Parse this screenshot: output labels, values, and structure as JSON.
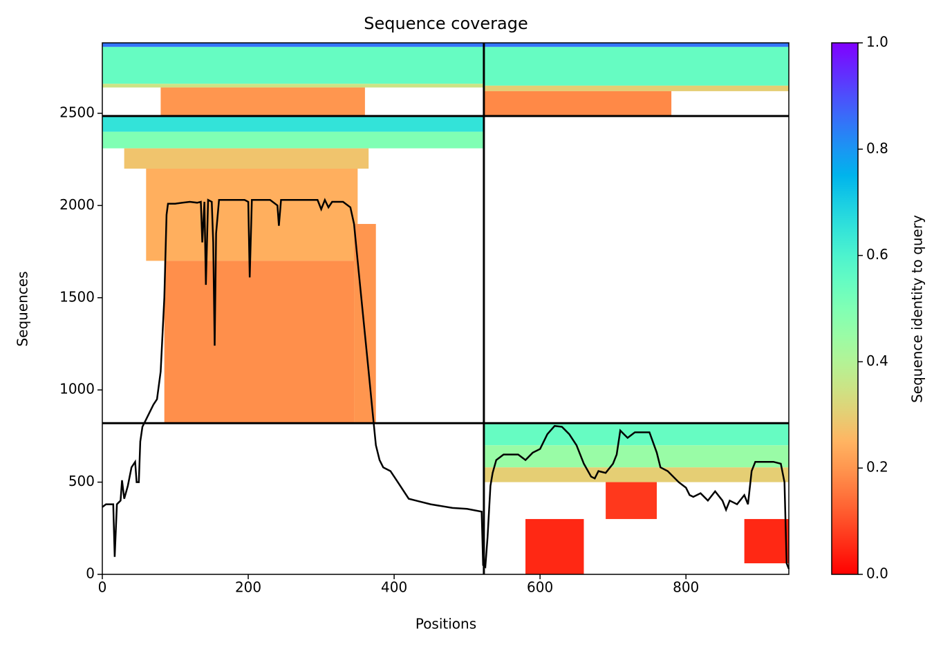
{
  "chart_data": {
    "type": "coverage",
    "title": "Sequence coverage",
    "xlabel": "Positions",
    "ylabel": "Sequences",
    "xlim": [
      0,
      941
    ],
    "ylim": [
      0,
      2882
    ],
    "xticks": [
      0,
      200,
      400,
      600,
      800
    ],
    "yticks": [
      0,
      500,
      1000,
      1500,
      2000,
      2500
    ],
    "colorbar": {
      "label": "Sequence identity to query",
      "lim": [
        0,
        1
      ],
      "ticks": [
        {
          "value": 0,
          "label": "0.0"
        },
        {
          "value": 0.2,
          "label": "0.2"
        },
        {
          "value": 0.4,
          "label": "0.4"
        },
        {
          "value": 0.6,
          "label": "0.6"
        },
        {
          "value": 0.8,
          "label": "0.8"
        },
        {
          "value": 1,
          "label": "1.0"
        }
      ]
    },
    "separators_x": [
      523
    ],
    "separators_y": [
      820,
      2485
    ],
    "blocks": [
      {
        "x": [
          0,
          523
        ],
        "y": [
          2860,
          2882
        ],
        "identity": 0.85
      },
      {
        "x": [
          0,
          523
        ],
        "y": [
          2660,
          2860
        ],
        "identity": 0.55
      },
      {
        "x": [
          0,
          523
        ],
        "y": [
          2640,
          2660
        ],
        "identity": 0.35
      },
      {
        "x": [
          80,
          360
        ],
        "y": [
          2485,
          2640
        ],
        "identity": 0.2
      },
      {
        "x": [
          523,
          941
        ],
        "y": [
          2860,
          2882
        ],
        "identity": 0.85
      },
      {
        "x": [
          523,
          941
        ],
        "y": [
          2650,
          2860
        ],
        "identity": 0.55
      },
      {
        "x": [
          523,
          941
        ],
        "y": [
          2620,
          2650
        ],
        "identity": 0.3
      },
      {
        "x": [
          523,
          780
        ],
        "y": [
          2485,
          2620
        ],
        "identity": 0.18
      },
      {
        "x": [
          0,
          523
        ],
        "y": [
          2400,
          2485
        ],
        "identity": 0.65
      },
      {
        "x": [
          0,
          523
        ],
        "y": [
          2310,
          2400
        ],
        "identity": 0.5
      },
      {
        "x": [
          30,
          365
        ],
        "y": [
          2200,
          2310
        ],
        "identity": 0.28
      },
      {
        "x": [
          60,
          350
        ],
        "y": [
          1700,
          2200
        ],
        "identity": 0.24
      },
      {
        "x": [
          85,
          345
        ],
        "y": [
          820,
          1700
        ],
        "identity": 0.19
      },
      {
        "x": [
          345,
          375
        ],
        "y": [
          820,
          1900
        ],
        "identity": 0.2
      },
      {
        "x": [
          523,
          941
        ],
        "y": [
          700,
          820
        ],
        "identity": 0.55
      },
      {
        "x": [
          523,
          941
        ],
        "y": [
          580,
          700
        ],
        "identity": 0.45
      },
      {
        "x": [
          523,
          941
        ],
        "y": [
          500,
          580
        ],
        "identity": 0.3
      },
      {
        "x": [
          690,
          760
        ],
        "y": [
          300,
          500
        ],
        "identity": 0.07
      },
      {
        "x": [
          580,
          660
        ],
        "y": [
          0,
          300
        ],
        "identity": 0.05
      },
      {
        "x": [
          880,
          941
        ],
        "y": [
          60,
          300
        ],
        "identity": 0.05
      }
    ],
    "series": [
      {
        "name": "coverage",
        "color": "#000000",
        "x": [
          0,
          5,
          15,
          17,
          20,
          25,
          27,
          30,
          35,
          40,
          45,
          47,
          50,
          52,
          55,
          60,
          65,
          70,
          75,
          80,
          85,
          88,
          90,
          100,
          110,
          120,
          130,
          135,
          137,
          140,
          142,
          145,
          150,
          152,
          154,
          156,
          160,
          180,
          195,
          200,
          202,
          205,
          230,
          240,
          242,
          245,
          280,
          295,
          300,
          305,
          310,
          315,
          330,
          340,
          345,
          350,
          355,
          360,
          365,
          370,
          375,
          380,
          385,
          395,
          405,
          420,
          430,
          450,
          480,
          500,
          520,
          522,
          525,
          528,
          532,
          535,
          540,
          550,
          570,
          580,
          590,
          600,
          610,
          620,
          630,
          640,
          650,
          660,
          670,
          675,
          680,
          690,
          700,
          705,
          710,
          715,
          720,
          730,
          750,
          760,
          765,
          775,
          790,
          800,
          805,
          810,
          820,
          830,
          840,
          850,
          855,
          860,
          870,
          880,
          885,
          890,
          895,
          920,
          930,
          935,
          938,
          941
        ],
        "values": [
          365,
          380,
          380,
          95,
          380,
          400,
          510,
          410,
          480,
          580,
          610,
          500,
          500,
          720,
          800,
          840,
          880,
          920,
          950,
          1100,
          1500,
          1950,
          2010,
          2010,
          2015,
          2020,
          2015,
          2020,
          1800,
          2020,
          1570,
          2030,
          2020,
          1800,
          1240,
          1850,
          2030,
          2030,
          2030,
          2020,
          1610,
          2030,
          2030,
          2000,
          1890,
          2030,
          2030,
          2030,
          1980,
          2030,
          1990,
          2020,
          2020,
          1990,
          1900,
          1700,
          1500,
          1300,
          1100,
          900,
          700,
          620,
          580,
          560,
          500,
          410,
          400,
          380,
          360,
          355,
          340,
          50,
          40,
          200,
          480,
          550,
          620,
          650,
          650,
          620,
          660,
          680,
          760,
          805,
          800,
          760,
          700,
          600,
          530,
          520,
          560,
          550,
          600,
          650,
          780,
          760,
          740,
          770,
          770,
          660,
          580,
          560,
          500,
          470,
          430,
          420,
          440,
          400,
          450,
          400,
          350,
          400,
          380,
          430,
          380,
          560,
          610,
          610,
          600,
          500,
          60,
          30
        ]
      }
    ]
  }
}
